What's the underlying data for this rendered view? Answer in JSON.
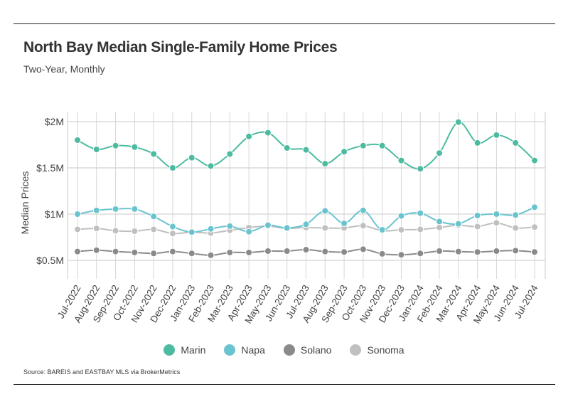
{
  "title": "North Bay Median Single-Family Home Prices",
  "subtitle": "Two-Year, Monthly",
  "source": "Source:  BAREIS and EASTBAY MLS via BrokerMetrics",
  "chart_data": {
    "type": "line",
    "title": "North Bay Median Single-Family Home Prices",
    "subtitle": "Two-Year, Monthly",
    "xlabel": "",
    "ylabel": "Median Prices",
    "ylim": [
      300000,
      2100000
    ],
    "y_ticks": [
      500000,
      1000000,
      1500000,
      2000000
    ],
    "y_tick_labels": [
      "$0.5M",
      "$1M",
      "$1.5M",
      "$2M"
    ],
    "grid": true,
    "legend_position": "bottom",
    "categories": [
      "Jul-2022",
      "Aug-2022",
      "Sep-2022",
      "Oct-2022",
      "Nov-2022",
      "Dec-2022",
      "Jan-2023",
      "Feb-2023",
      "Mar-2023",
      "Apr-2023",
      "May-2023",
      "Jun-2023",
      "Jul-2023",
      "Aug-2023",
      "Sep-2023",
      "Oct-2023",
      "Nov-2023",
      "Dec-2023",
      "Jan-2024",
      "Feb-2024",
      "Mar-2024",
      "Apr-2024",
      "May-2024",
      "Jun-2024",
      "Jul-2024"
    ],
    "series": [
      {
        "name": "Marin",
        "color": "#4dbba0",
        "values": [
          1800000,
          1700000,
          1740000,
          1725000,
          1650000,
          1500000,
          1610000,
          1520000,
          1650000,
          1840000,
          1880000,
          1715000,
          1695000,
          1545000,
          1675000,
          1740000,
          1740000,
          1580000,
          1490000,
          1660000,
          1995000,
          1770000,
          1855000,
          1770000,
          1580000
        ]
      },
      {
        "name": "Napa",
        "color": "#6ac4cf",
        "values": [
          1000000,
          1040000,
          1055000,
          1055000,
          975000,
          865000,
          805000,
          840000,
          870000,
          810000,
          880000,
          850000,
          890000,
          1035000,
          900000,
          1040000,
          830000,
          980000,
          1010000,
          920000,
          895000,
          985000,
          1000000,
          990000,
          1075000
        ]
      },
      {
        "name": "Solano",
        "color": "#8a8a8a",
        "values": [
          595000,
          610000,
          595000,
          585000,
          575000,
          595000,
          575000,
          555000,
          585000,
          585000,
          600000,
          600000,
          615000,
          595000,
          590000,
          620000,
          570000,
          560000,
          575000,
          600000,
          595000,
          590000,
          600000,
          605000,
          590000
        ]
      },
      {
        "name": "Sonoma",
        "color": "#c0c0c0",
        "values": [
          835000,
          845000,
          820000,
          815000,
          835000,
          790000,
          805000,
          795000,
          825000,
          855000,
          870000,
          845000,
          855000,
          850000,
          850000,
          875000,
          820000,
          830000,
          835000,
          855000,
          880000,
          865000,
          905000,
          850000,
          860000
        ]
      }
    ]
  }
}
